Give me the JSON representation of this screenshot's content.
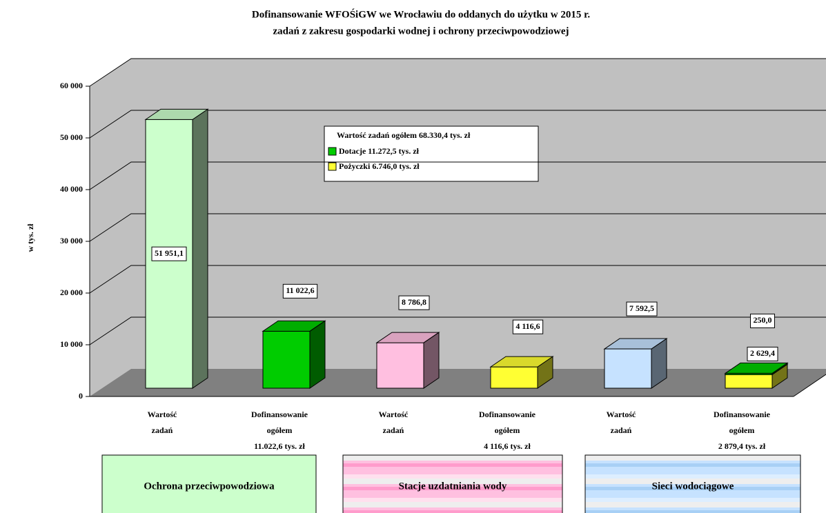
{
  "chart_data": {
    "type": "bar3d",
    "title": [
      "Dofinansowanie WFOŚiGW we Wrocławiu do oddanych do użytku w 2015 r.",
      "zadań z zakresu gospodarki wodnej i ochrony przeciwpowodziowej"
    ],
    "y_label": "w tys. zł",
    "categories": [
      "Wartość\nzadań",
      "Dofinansowanie\nogółem\n11.022,6 tys. zł",
      "Wartość\nzadań",
      "Dofinansowanie\nogółem\n4 116,6 tys. zł",
      "Wartość\nzadań",
      "Dofinansowanie\nogółem\n2 879,4 tys. zł"
    ],
    "groups": [
      "Ochrona przeciwpowodziowa",
      "Stacje uzdatniania wody",
      "Sieci wodociągowe"
    ],
    "series": [
      {
        "name": "Wartość zadań ogółem 68.330,4 tys. zł",
        "colors": [
          "#ccffcc",
          null,
          "#ffbfe0",
          null,
          "#c6e2ff",
          null
        ],
        "values": [
          51951.1,
          null,
          8786.8,
          null,
          7592.5,
          null
        ],
        "value_labels": [
          "51 951,1",
          null,
          "8 786,8",
          null,
          "7 592,5",
          null
        ]
      },
      {
        "name": "Dotacje 11.272,5 tys. zł",
        "color": "#00cc00",
        "values": [
          null,
          11022.6,
          null,
          null,
          null,
          250.0
        ],
        "value_labels": [
          null,
          "11 022,6",
          null,
          null,
          null,
          "250,0"
        ]
      },
      {
        "name": "Pożyczki 6.746,0 tys. zł",
        "color": "#ffff33",
        "values": [
          null,
          null,
          null,
          4116.6,
          null,
          2629.4
        ],
        "value_labels": [
          null,
          null,
          null,
          "4 116,6",
          null,
          "2 629,4"
        ]
      }
    ],
    "ylim": [
      0,
      60000
    ],
    "yticks": [
      0,
      {
        "value": 10000,
        "label": "10 000"
      },
      {
        "value": 20000,
        "label": "20 000"
      },
      {
        "value": 30000,
        "label": "30 000"
      },
      {
        "value": 40000,
        "label": "40 000"
      },
      {
        "value": 50000,
        "label": "50 000"
      },
      {
        "value": 60000,
        "label": "60 000"
      }
    ],
    "grid": true
  }
}
